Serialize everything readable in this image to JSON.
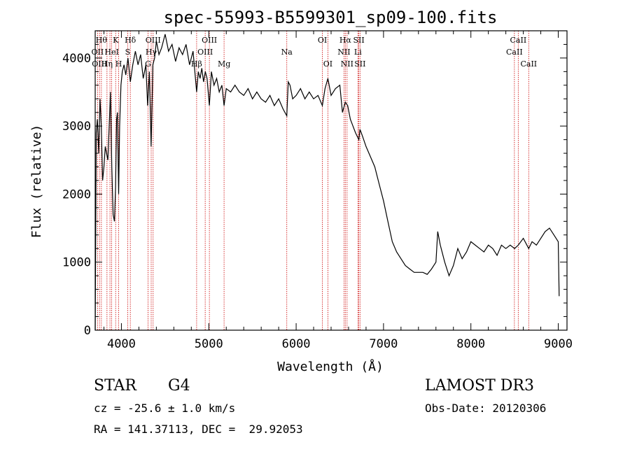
{
  "chart_data": {
    "type": "line",
    "title": "spec-55993-B5599301_sp09-100.fits",
    "xlabel": "Wavelength (Å)",
    "ylabel": "Flux (relative)",
    "xlim": [
      3700,
      9100
    ],
    "ylim": [
      0,
      4400
    ],
    "xticks": [
      4000,
      5000,
      6000,
      7000,
      8000,
      9000
    ],
    "yticks": [
      0,
      1000,
      2000,
      3000,
      4000
    ],
    "grid": false,
    "series": [
      {
        "x": [
          3700,
          3712,
          3725,
          3740,
          3755,
          3770,
          3785,
          3800,
          3815,
          3830,
          3845,
          3860,
          3875,
          3890,
          3905,
          3920,
          3933,
          3945,
          3955,
          3968,
          3980,
          3995,
          4010,
          4030,
          4050,
          4075,
          4102,
          4130,
          4160,
          4190,
          4220,
          4250,
          4280,
          4300,
          4320,
          4340,
          4360,
          4380,
          4400,
          4430,
          4460,
          4500,
          4540,
          4580,
          4620,
          4660,
          4700,
          4740,
          4780,
          4820,
          4861,
          4880,
          4900,
          4920,
          4940,
          4960,
          4980,
          5007,
          5030,
          5060,
          5090,
          5120,
          5150,
          5175,
          5200,
          5250,
          5300,
          5350,
          5400,
          5450,
          5500,
          5550,
          5600,
          5650,
          5700,
          5750,
          5800,
          5850,
          5893,
          5910,
          5930,
          5960,
          6000,
          6050,
          6100,
          6150,
          6200,
          6250,
          6300,
          6330,
          6363,
          6400,
          6450,
          6500,
          6530,
          6563,
          6590,
          6620,
          6650,
          6680,
          6717,
          6731,
          6760,
          6800,
          6850,
          6900,
          6950,
          7000,
          7050,
          7100,
          7150,
          7200,
          7250,
          7300,
          7350,
          7400,
          7450,
          7500,
          7550,
          7600,
          7620,
          7650,
          7700,
          7750,
          7800,
          7850,
          7900,
          7950,
          8000,
          8050,
          8100,
          8150,
          8200,
          8250,
          8300,
          8350,
          8400,
          8450,
          8500,
          8542,
          8600,
          8662,
          8700,
          8750,
          8800,
          8850,
          8900,
          8950,
          9000,
          9010
        ],
        "y": [
          0,
          2900,
          3100,
          2600,
          3400,
          3000,
          2200,
          2400,
          2700,
          2600,
          2500,
          3000,
          3500,
          2400,
          1700,
          1600,
          2100,
          3100,
          3200,
          2000,
          3000,
          3600,
          3800,
          3900,
          3750,
          4000,
          3650,
          3900,
          4100,
          3900,
          4050,
          3700,
          3900,
          3300,
          3800,
          2700,
          3900,
          4000,
          4250,
          4050,
          4150,
          4350,
          4100,
          4200,
          3950,
          4150,
          4050,
          4200,
          3900,
          4100,
          3500,
          3800,
          3700,
          3850,
          3650,
          3800,
          3700,
          3300,
          3800,
          3600,
          3700,
          3500,
          3600,
          3300,
          3550,
          3500,
          3600,
          3500,
          3450,
          3550,
          3400,
          3500,
          3400,
          3350,
          3450,
          3300,
          3400,
          3250,
          3150,
          3650,
          3600,
          3400,
          3450,
          3550,
          3400,
          3500,
          3400,
          3450,
          3300,
          3550,
          3700,
          3450,
          3550,
          3600,
          3200,
          3350,
          3300,
          3100,
          3000,
          2900,
          2800,
          2950,
          2850,
          2700,
          2550,
          2400,
          2150,
          1900,
          1600,
          1300,
          1150,
          1050,
          950,
          900,
          850,
          850,
          850,
          820,
          900,
          1000,
          1450,
          1250,
          1000,
          800,
          950,
          1200,
          1050,
          1150,
          1300,
          1250,
          1200,
          1150,
          1250,
          1200,
          1100,
          1250,
          1200,
          1250,
          1200,
          1250,
          1350,
          1200,
          1300,
          1250,
          1350,
          1450,
          1500,
          1400,
          1300,
          500
        ]
      }
    ],
    "lines": [
      {
        "x": 3727,
        "label": "OII",
        "row": 1
      },
      {
        "x": 3750,
        "label": "OIII",
        "row": 2
      },
      {
        "x": 3771,
        "label": "Hθ",
        "row": 0
      },
      {
        "x": 3835,
        "label": "Hη",
        "row": 2
      },
      {
        "x": 3869,
        "label": "",
        "row": 1
      },
      {
        "x": 3889,
        "label": "HeI",
        "row": 1
      },
      {
        "x": 3934,
        "label": "K",
        "row": 0
      },
      {
        "x": 3969,
        "label": "H",
        "row": 2
      },
      {
        "x": 4072,
        "label": "S",
        "row": 1
      },
      {
        "x": 4102,
        "label": "Hδ",
        "row": 0
      },
      {
        "x": 4305,
        "label": "G",
        "row": 2
      },
      {
        "x": 4341,
        "label": "Hγ",
        "row": 1
      },
      {
        "x": 4363,
        "label": "OIII",
        "row": 0
      },
      {
        "x": 4861,
        "label": "Hβ",
        "row": 2
      },
      {
        "x": 4959,
        "label": "OIII",
        "row": 1
      },
      {
        "x": 5007,
        "label": "OIII",
        "row": 0
      },
      {
        "x": 5175,
        "label": "Mg",
        "row": 2
      },
      {
        "x": 5893,
        "label": "Na",
        "row": 1
      },
      {
        "x": 6300,
        "label": "OI",
        "row": 0
      },
      {
        "x": 6363,
        "label": "OI",
        "row": 2
      },
      {
        "x": 6548,
        "label": "NII",
        "row": 1
      },
      {
        "x": 6563,
        "label": "Hα",
        "row": 0
      },
      {
        "x": 6583,
        "label": "NII",
        "row": 2
      },
      {
        "x": 6707,
        "label": "Li",
        "row": 1
      },
      {
        "x": 6717,
        "label": "SII",
        "row": 0
      },
      {
        "x": 6731,
        "label": "SII",
        "row": 2
      },
      {
        "x": 8498,
        "label": "CaII",
        "row": 1
      },
      {
        "x": 8542,
        "label": "CaII",
        "row": 0
      },
      {
        "x": 8662,
        "label": "CaII",
        "row": 2
      }
    ]
  },
  "info": {
    "class": "STAR",
    "subclass": "G4",
    "survey": "LAMOST DR3",
    "cz": "cz = -25.6 ± 1.0 km/s",
    "obs_date": "Obs-Date: 20120306",
    "radec": "RA = 141.37113, DEC =  29.92053"
  },
  "colors": {
    "line_marker": "#cc0000",
    "spectrum": "#000000"
  }
}
